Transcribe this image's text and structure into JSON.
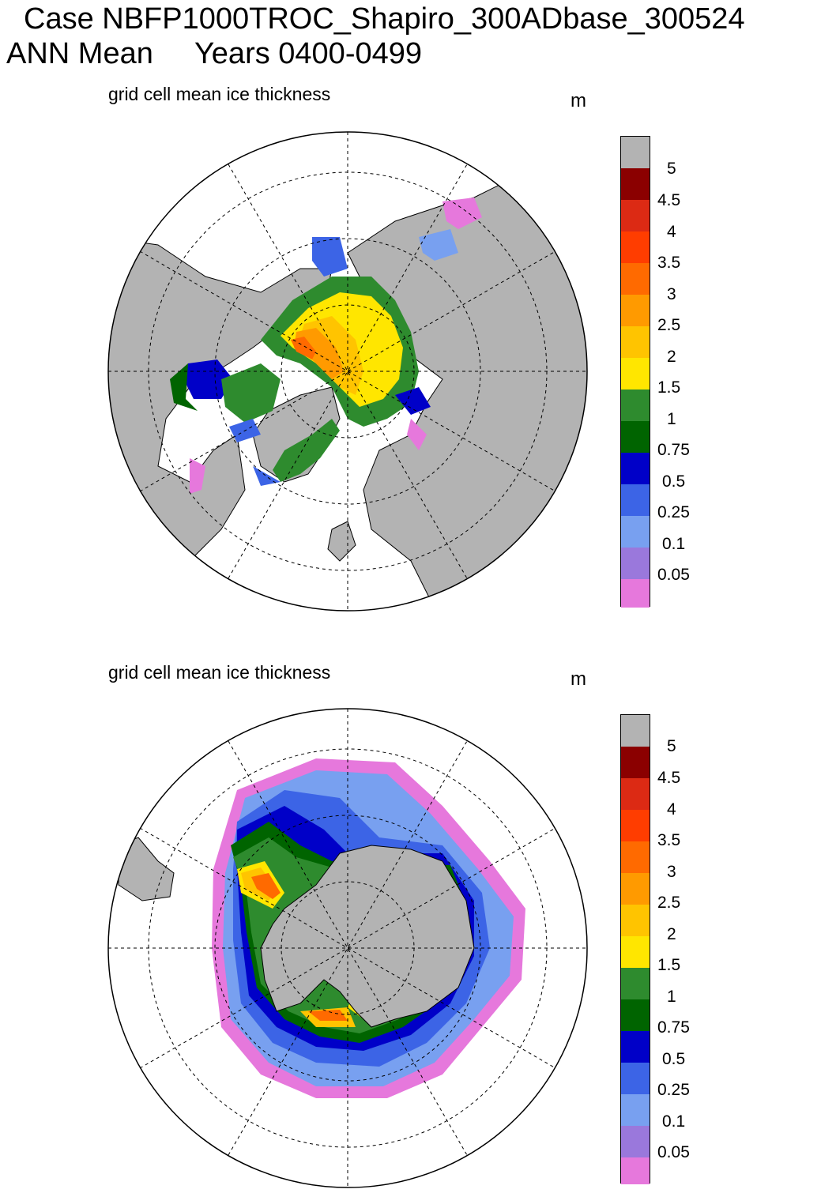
{
  "header": {
    "line1": "Case NBFP1000TROC_Shapiro_300ADbase_300524",
    "line2": "ANN Mean     Years 0400-0499"
  },
  "panels": [
    {
      "subtitle": "grid cell mean ice thickness",
      "unit": "m",
      "hemisphere": "north"
    },
    {
      "subtitle": "grid cell mean ice thickness",
      "unit": "m",
      "hemisphere": "south"
    }
  ],
  "colorbar": {
    "labels": [
      "5",
      "4.5",
      "4",
      "3.5",
      "3",
      "2.5",
      "2",
      "1.5",
      "1",
      "0.75",
      "0.5",
      "0.25",
      "0.1",
      "0.05"
    ],
    "colors": [
      "#b3b3b3",
      "#8b0000",
      "#dc2a14",
      "#ff3d00",
      "#ff6a00",
      "#ff9a00",
      "#ffc400",
      "#ffe600",
      "#2e8b2e",
      "#006400",
      "#0000c8",
      "#3c64e6",
      "#78a0f0",
      "#9a78dc",
      "#e678dc"
    ]
  },
  "colors": {
    "land": "#b3b3b3",
    "ocean": "#ffffff"
  }
}
